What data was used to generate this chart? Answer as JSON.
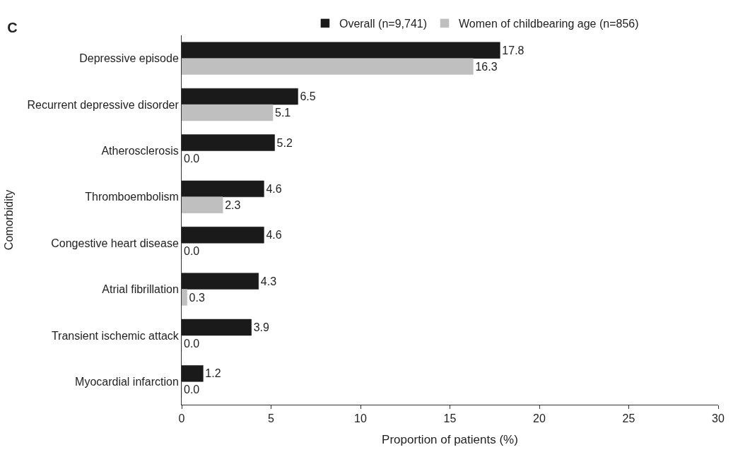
{
  "chart_data": {
    "type": "bar",
    "orientation": "horizontal",
    "title": "C",
    "xlabel": "Proportion of patients (%)",
    "ylabel": "Comorbidity",
    "categories": [
      "Depressive episode",
      "Recurrent depressive disorder",
      "Atherosclerosis",
      "Thromboembolism",
      "Congestive heart disease",
      "Atrial fibrillation",
      "Transient ischemic attack",
      "Myocardial infarction"
    ],
    "series": [
      {
        "name": "Overall (n=9,741)",
        "color": "#1a1a1a",
        "values": [
          17.8,
          6.5,
          5.2,
          4.6,
          4.6,
          4.3,
          3.9,
          1.2
        ],
        "value_labels": [
          "17.8",
          "6.5",
          "5.2",
          "4.6",
          "4.6",
          "4.3",
          "3.9",
          "1.2"
        ]
      },
      {
        "name": "Women of childbearing age (n=856)",
        "color": "#bfbfbf",
        "values": [
          16.3,
          5.1,
          0.0,
          2.3,
          0.0,
          0.3,
          0.0,
          0.0
        ],
        "value_labels": [
          "16.3",
          "5.1",
          "0.0",
          "2.3",
          "0.0",
          "0.3",
          "0.0",
          "0.0"
        ]
      }
    ],
    "xlim": [
      0,
      30
    ],
    "xticks": [
      0,
      5,
      10,
      15,
      20,
      25,
      30
    ],
    "legend": "top"
  }
}
